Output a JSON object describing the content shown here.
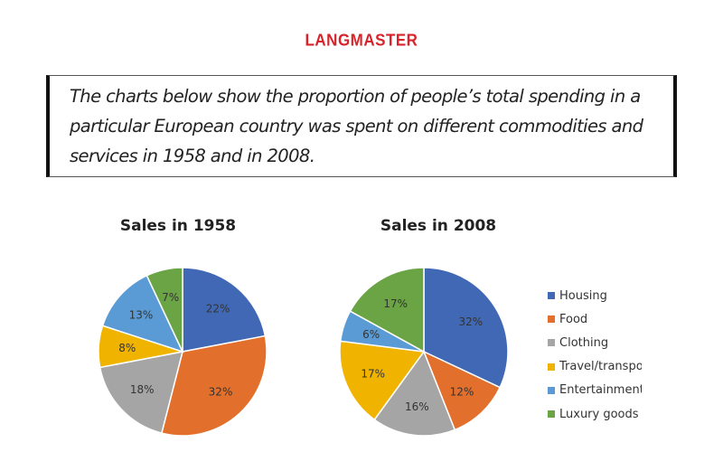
{
  "logo": "LANGMASTER",
  "prompt": "The charts below show the proportion of people’s total spending in a particular European country was spent on different commodities and services in 1958 and in 2008.",
  "chart_data": [
    {
      "type": "pie",
      "title": "Sales in 1958",
      "categories": [
        "Housing",
        "Food",
        "Clothing",
        "Travel/transport",
        "Entertainment",
        "Luxury goods"
      ],
      "values": [
        22,
        32,
        18,
        8,
        13,
        7
      ],
      "labels": [
        "22%",
        "32%",
        "18%",
        "8%",
        "13%",
        "7%"
      ]
    },
    {
      "type": "pie",
      "title": "Sales in 2008",
      "categories": [
        "Housing",
        "Food",
        "Clothing",
        "Travel/transport",
        "Entertainment",
        "Luxury goods"
      ],
      "values": [
        32,
        12,
        16,
        17,
        6,
        17
      ],
      "labels": [
        "32%",
        "12%",
        "16%",
        "17%",
        "6%",
        "17%"
      ]
    }
  ],
  "legend": {
    "position": "right",
    "items": [
      "Housing",
      "Food",
      "Clothing",
      "Travel/transpo",
      "Entertainment",
      "Luxury goods"
    ]
  },
  "colors": [
    "#4168b4",
    "#e2702c",
    "#a5a5a5",
    "#f0b400",
    "#5b9bd5",
    "#6aa444"
  ]
}
